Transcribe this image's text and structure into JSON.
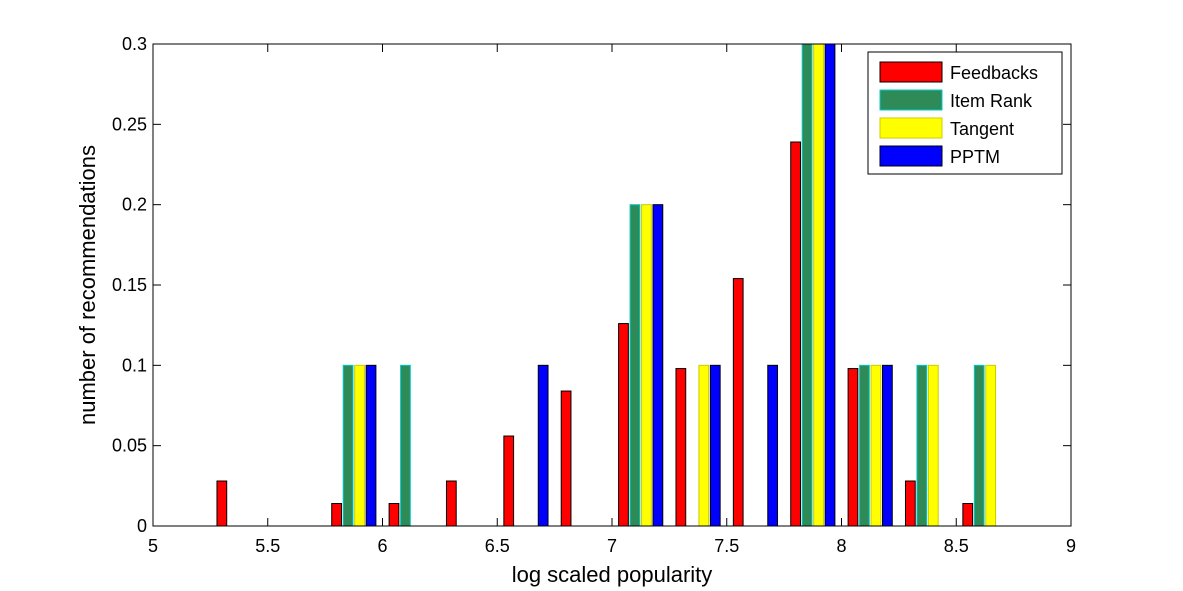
{
  "chart_data": {
    "type": "bar",
    "title": "",
    "xlabel": "log scaled popularity",
    "ylabel": "number of recommendations",
    "xlim": [
      5,
      9
    ],
    "ylim": [
      0,
      0.3
    ],
    "x_ticks": [
      "5",
      "5.5",
      "6",
      "6.5",
      "7",
      "7.5",
      "8",
      "8.5",
      "9"
    ],
    "y_ticks": [
      "0",
      "0.05",
      "0.1",
      "0.15",
      "0.2",
      "0.25",
      "0.3"
    ],
    "grid": false,
    "legend_position": "top-right",
    "x": [
      5.125,
      5.375,
      5.625,
      5.875,
      6.125,
      6.375,
      6.625,
      6.875,
      7.125,
      7.375,
      7.625,
      7.875,
      8.125,
      8.375,
      8.625,
      8.875
    ],
    "series": [
      {
        "name": "Feedbacks",
        "color": "#ff0000",
        "edge_color": "#000000",
        "values": [
          0.0,
          0.028,
          0.0,
          0.014,
          0.014,
          0.028,
          0.056,
          0.084,
          0.126,
          0.098,
          0.154,
          0.239,
          0.098,
          0.028,
          0.014,
          0.0
        ]
      },
      {
        "name": "Item Rank",
        "color": "#2e8b57",
        "edge_color": "#00cccc",
        "values": [
          0.0,
          0.0,
          0.0,
          0.1,
          0.1,
          0.0,
          0.0,
          0.0,
          0.2,
          0.0,
          0.0,
          0.3,
          0.1,
          0.1,
          0.1,
          0.0
        ]
      },
      {
        "name": "Tangent",
        "color": "#ffff00",
        "edge_color": "#cccc00",
        "values": [
          0.0,
          0.0,
          0.0,
          0.1,
          0.0,
          0.0,
          0.0,
          0.0,
          0.2,
          0.1,
          0.0,
          0.3,
          0.1,
          0.1,
          0.1,
          0.0
        ]
      },
      {
        "name": "PPTM",
        "color": "#0000ff",
        "edge_color": "#000000",
        "values": [
          0.0,
          0.0,
          0.0,
          0.1,
          0.0,
          0.0,
          0.1,
          0.0,
          0.2,
          0.1,
          0.1,
          0.3,
          0.1,
          0.0,
          0.0,
          0.0
        ]
      }
    ]
  }
}
